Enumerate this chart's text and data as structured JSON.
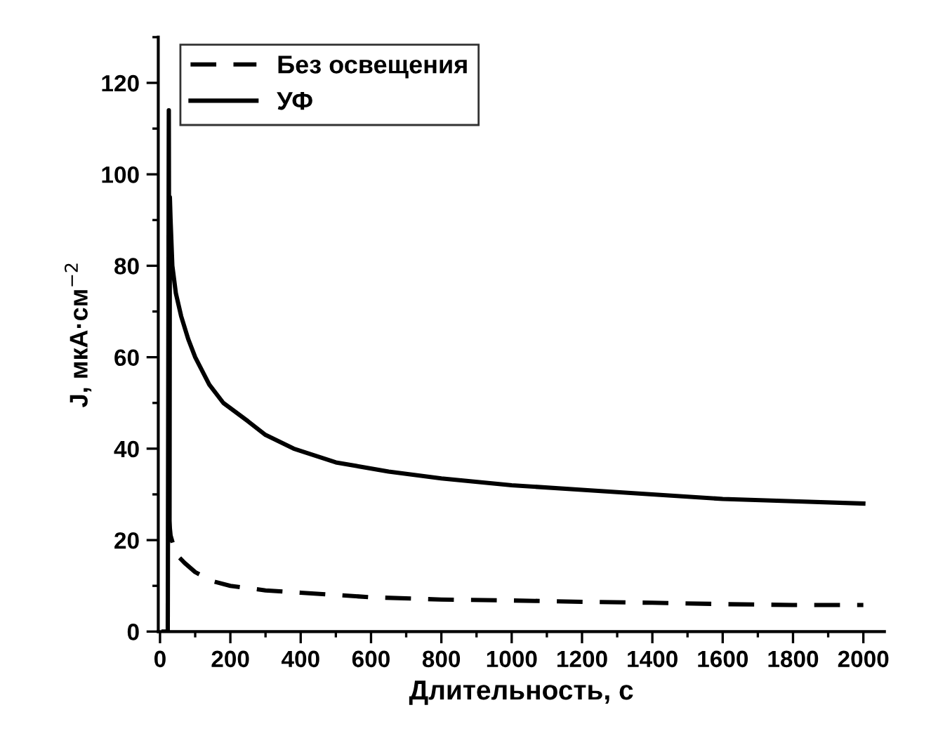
{
  "chart_data": {
    "type": "line",
    "xlabel": "Длительность, с",
    "ylabel": "J, мкА·см$^{−2}$",
    "xlim": [
      -5,
      2060
    ],
    "ylim": [
      0,
      130
    ],
    "xticks": [
      0,
      {
        "value": 100,
        "label": null
      },
      200,
      {
        "value": 300,
        "label": null
      },
      400,
      {
        "value": 500,
        "label": null
      },
      600,
      {
        "value": 700,
        "label": null
      },
      800,
      {
        "value": 900,
        "label": null
      },
      1000,
      {
        "value": 1100,
        "label": null
      },
      1200,
      {
        "value": 1300,
        "label": null
      },
      1400,
      {
        "value": 1500,
        "label": null
      },
      1600,
      {
        "value": 1700,
        "label": null
      },
      1800,
      {
        "value": 1900,
        "label": null
      },
      2000
    ],
    "yticks": [
      0,
      {
        "value": 10,
        "label": null
      },
      20,
      {
        "value": 30,
        "label": null
      },
      40,
      {
        "value": 50,
        "label": null
      },
      60,
      {
        "value": 70,
        "label": null
      },
      80,
      {
        "value": 90,
        "label": null
      },
      100,
      {
        "value": 110,
        "label": null
      },
      120,
      {
        "value": 130,
        "label": null
      }
    ],
    "legend": "top left",
    "grid": false,
    "marker": "none",
    "series": [
      {
        "name": "Без освещения",
        "color": "#000000",
        "line_style": "dashed",
        "x": [
          25,
          30,
          45,
          70,
          100,
          150,
          200,
          300,
          400,
          500,
          600,
          800,
          1000,
          1200,
          1400,
          1600,
          1800,
          2000
        ],
        "values": [
          25,
          21,
          17,
          15,
          13,
          11,
          10,
          9,
          8.5,
          8,
          7.5,
          7,
          6.8,
          6.5,
          6.3,
          6,
          5.8,
          5.8
        ]
      },
      {
        "name": "УФ",
        "color": "#000000",
        "line_style": "solid",
        "x": [
          10,
          18,
          22,
          25,
          27,
          28,
          30,
          35,
          45,
          60,
          80,
          100,
          140,
          180,
          250,
          300,
          380,
          500,
          650,
          800,
          1000,
          1200,
          1400,
          1600,
          1800,
          2000
        ],
        "values": [
          0,
          0,
          0,
          114,
          20,
          95,
          90,
          80,
          74,
          69,
          64,
          60,
          54,
          50,
          46,
          43,
          40,
          37,
          35,
          33.5,
          32,
          31,
          30,
          29,
          28.5,
          28
        ]
      }
    ]
  }
}
